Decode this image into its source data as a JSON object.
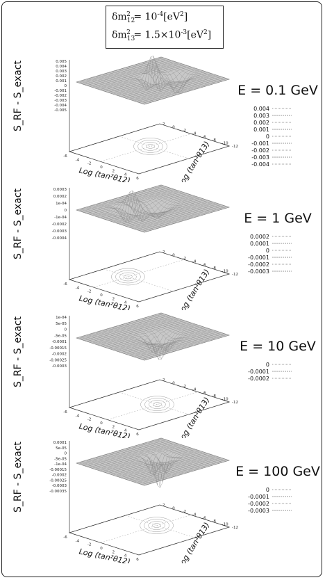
{
  "header": {
    "line1": {
      "prefix": "δm",
      "sub": "12",
      "sup": "2",
      "eq": " = 10",
      "exp": "-4",
      "unit": "[eV",
      "unit_sup": "2",
      "close": "]"
    },
    "line2": {
      "prefix": "δm",
      "sub": "13",
      "sup": "2",
      "eq": " = 1.5×10",
      "exp": "-3",
      "unit": "[eV",
      "unit_sup": "2",
      "close": "]"
    }
  },
  "chart_data": [
    {
      "type": "surface3d",
      "title": "E = 0.1 GeV",
      "zlabel": "S_RF - S_exact",
      "xlabel": "Log (tan²θ12)",
      "ylabel": "Log (tan²θ13)",
      "x_ticks": [
        "-6",
        "-4",
        "-2",
        "0",
        "2",
        "4",
        "6"
      ],
      "y_ticks": [
        "2",
        "0",
        "-2",
        "-4",
        "-6",
        "-8",
        "-10",
        "-12"
      ],
      "z_ticks": [
        "0.005",
        "0.004",
        "0.003",
        "0.002",
        "0.001",
        "0",
        "-0.001",
        "-0.002",
        "-0.003",
        "-0.004",
        "-0.005"
      ],
      "contour_levels": [
        "0.004",
        "0.003",
        "0.002",
        "0.001",
        "0",
        "-0.001",
        "-0.002",
        "-0.003",
        "-0.004"
      ]
    },
    {
      "type": "surface3d",
      "title": "E = 1 GeV",
      "zlabel": "S_RF - S_exact",
      "xlabel": "Log (tan²θ12)",
      "ylabel": "Log (tan²θ13)",
      "x_ticks": [
        "-6",
        "-4",
        "-2",
        "0",
        "2",
        "4",
        "6"
      ],
      "y_ticks": [
        "2",
        "0",
        "-2",
        "-4",
        "-6",
        "-8",
        "-10",
        "-12"
      ],
      "z_ticks": [
        "0.0003",
        "0.0002",
        "1e-04",
        "0",
        "-1e-04",
        "-0.0002",
        "-0.0003",
        "-0.0004"
      ],
      "contour_levels": [
        "0.0002",
        "0.0001",
        "0",
        "-0.0001",
        "-0.0002",
        "-0.0003"
      ]
    },
    {
      "type": "surface3d",
      "title": "E = 10 GeV",
      "zlabel": "S_RF - S_exact",
      "xlabel": "Log (tan²θ12)",
      "ylabel": "Log (tan²θ13)",
      "x_ticks": [
        "-6",
        "-4",
        "-2",
        "0",
        "2",
        "4",
        "6"
      ],
      "y_ticks": [
        "2",
        "0",
        "-2",
        "-4",
        "-6",
        "-8",
        "-10",
        "-12"
      ],
      "z_ticks": [
        "1e-04",
        "5e-05",
        "0",
        "-5e-05",
        "-0.0001",
        "-0.00015",
        "-0.0002",
        "-0.00025",
        "-0.0003"
      ],
      "contour_levels": [
        "0",
        "-0.0001",
        "-0.0002"
      ]
    },
    {
      "type": "surface3d",
      "title": "E = 100 GeV",
      "zlabel": "S_RF - S_exact",
      "xlabel": "Log (tan²θ12)",
      "ylabel": "Log (tan²θ13)",
      "x_ticks": [
        "-6",
        "-4",
        "-2",
        "0",
        "2",
        "4",
        "6"
      ],
      "y_ticks": [
        "2",
        "0",
        "-2",
        "-4",
        "-6",
        "-8",
        "-10",
        "-12"
      ],
      "z_ticks": [
        "0.0001",
        "5e-05",
        "0",
        "-5e-05",
        "-1e-04",
        "-0.00015",
        "-0.0002",
        "-0.00025",
        "-0.0003",
        "-0.00035"
      ],
      "contour_levels": [
        "0",
        "-0.0001",
        "-0.0002",
        "-0.0003"
      ]
    }
  ]
}
